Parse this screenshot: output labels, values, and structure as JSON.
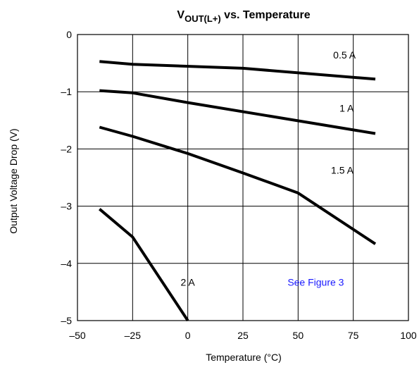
{
  "chart_data": {
    "type": "line",
    "title_main": "V",
    "title_sub": "OUT(L+)",
    "title_rest": " vs. Temperature",
    "xlabel": "Temperature (°C)",
    "ylabel": "Output Voltage Drop (V)",
    "xlim": [
      -50,
      100
    ],
    "ylim": [
      -5,
      0
    ],
    "xticks": [
      -50,
      -25,
      0,
      25,
      50,
      75,
      100
    ],
    "xtick_labels": [
      "–50",
      "–25",
      "0",
      "25",
      "50",
      "75",
      "100"
    ],
    "yticks": [
      0,
      -1,
      -2,
      -3,
      -4,
      -5
    ],
    "ytick_labels": [
      "0",
      "–1",
      "–2",
      "–3",
      "–4",
      "–5"
    ],
    "grid": true,
    "series": [
      {
        "name": "0.5 A",
        "x": [
          -40,
          -25,
          25,
          85
        ],
        "y": [
          -0.47,
          -0.52,
          -0.59,
          -0.78
        ]
      },
      {
        "name": "1 A",
        "x": [
          -40,
          -25,
          0,
          85
        ],
        "y": [
          -0.98,
          -1.02,
          -1.19,
          -1.73
        ]
      },
      {
        "name": "1.5 A",
        "x": [
          -40,
          -25,
          0,
          25,
          50,
          85
        ],
        "y": [
          -1.62,
          -1.78,
          -2.08,
          -2.42,
          -2.77,
          -3.66
        ]
      },
      {
        "name": "2 A",
        "x": [
          -40,
          -25,
          0
        ],
        "y": [
          -3.05,
          -3.54,
          -5.0
        ]
      }
    ],
    "annotation": "See Figure 3",
    "colors": {
      "line": "#000000",
      "grid": "#000000",
      "annotation": "#1a1aff"
    }
  }
}
